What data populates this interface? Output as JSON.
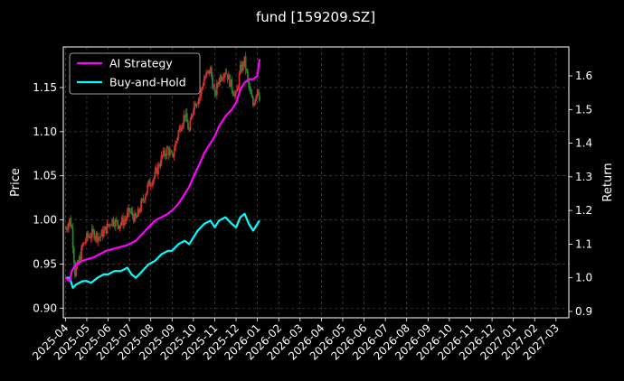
{
  "chart_data": {
    "type": "line",
    "title": "fund [159209.SZ]",
    "ylabel_left": "Price",
    "ylabel_right": "Return",
    "xlabel": "",
    "x_tick_labels": [
      "2025-04",
      "2025-05",
      "2025-06",
      "2025-07",
      "2025-08",
      "2025-09",
      "2025-10",
      "2025-11",
      "2025-12",
      "2026-01",
      "2026-02",
      "2026-03",
      "2026-04",
      "2026-05",
      "2026-06",
      "2026-07",
      "2026-08",
      "2026-09",
      "2026-10",
      "2026-11",
      "2026-12",
      "2027-01",
      "2027-02",
      "2027-03"
    ],
    "x_range_months": [
      -0.1,
      23.6
    ],
    "y_left": {
      "ticks": [
        0.9,
        0.95,
        1.0,
        1.05,
        1.1,
        1.15
      ],
      "tick_labels": [
        "0.90",
        "0.95",
        "1.00",
        "1.05",
        "1.10",
        "1.15"
      ],
      "range": [
        0.889,
        1.196
      ]
    },
    "y_right": {
      "ticks": [
        0.9,
        1.0,
        1.1,
        1.2,
        1.3,
        1.4,
        1.5,
        1.6
      ],
      "tick_labels": [
        "0.9",
        "1.0",
        "1.1",
        "1.2",
        "1.3",
        "1.4",
        "1.5",
        "1.6"
      ],
      "range": [
        0.881,
        1.686
      ]
    },
    "grid": true,
    "legend_position": "top-left",
    "background": "#000000",
    "text_color": "#ffffff",
    "series": [
      {
        "name": "AI Strategy",
        "axis": "right",
        "color": "#ff00ff",
        "points": [
          [
            0.0,
            1.0
          ],
          [
            0.2,
            0.99
          ],
          [
            0.3,
            1.02
          ],
          [
            0.5,
            1.04
          ],
          [
            0.8,
            1.05
          ],
          [
            1.0,
            1.055
          ],
          [
            1.3,
            1.06
          ],
          [
            1.6,
            1.07
          ],
          [
            1.9,
            1.08
          ],
          [
            2.2,
            1.085
          ],
          [
            2.5,
            1.09
          ],
          [
            2.8,
            1.095
          ],
          [
            3.0,
            1.1
          ],
          [
            3.3,
            1.11
          ],
          [
            3.6,
            1.13
          ],
          [
            3.9,
            1.15
          ],
          [
            4.2,
            1.17
          ],
          [
            4.5,
            1.18
          ],
          [
            4.8,
            1.19
          ],
          [
            5.0,
            1.2
          ],
          [
            5.3,
            1.22
          ],
          [
            5.6,
            1.25
          ],
          [
            5.8,
            1.27
          ],
          [
            6.0,
            1.3
          ],
          [
            6.3,
            1.34
          ],
          [
            6.5,
            1.37
          ],
          [
            6.8,
            1.4
          ],
          [
            7.0,
            1.42
          ],
          [
            7.2,
            1.45
          ],
          [
            7.5,
            1.48
          ],
          [
            7.8,
            1.5
          ],
          [
            8.0,
            1.52
          ],
          [
            8.2,
            1.56
          ],
          [
            8.4,
            1.58
          ],
          [
            8.6,
            1.59
          ],
          [
            8.8,
            1.59
          ],
          [
            9.0,
            1.6
          ],
          [
            9.1,
            1.65
          ]
        ]
      },
      {
        "name": "Buy-and-Hold",
        "axis": "right",
        "color": "#00ffff",
        "points": [
          [
            0.0,
            1.0
          ],
          [
            0.2,
            1.0
          ],
          [
            0.35,
            0.97
          ],
          [
            0.5,
            0.98
          ],
          [
            0.8,
            0.99
          ],
          [
            1.0,
            0.99
          ],
          [
            1.2,
            0.985
          ],
          [
            1.5,
            1.0
          ],
          [
            1.8,
            1.01
          ],
          [
            2.0,
            1.01
          ],
          [
            2.3,
            1.02
          ],
          [
            2.6,
            1.02
          ],
          [
            2.9,
            1.03
          ],
          [
            3.1,
            1.01
          ],
          [
            3.3,
            1.0
          ],
          [
            3.6,
            1.02
          ],
          [
            3.9,
            1.04
          ],
          [
            4.2,
            1.05
          ],
          [
            4.5,
            1.07
          ],
          [
            4.8,
            1.08
          ],
          [
            5.0,
            1.08
          ],
          [
            5.3,
            1.1
          ],
          [
            5.6,
            1.11
          ],
          [
            5.8,
            1.1
          ],
          [
            6.0,
            1.12
          ],
          [
            6.2,
            1.14
          ],
          [
            6.5,
            1.16
          ],
          [
            6.8,
            1.17
          ],
          [
            7.0,
            1.15
          ],
          [
            7.2,
            1.17
          ],
          [
            7.5,
            1.18
          ],
          [
            7.8,
            1.16
          ],
          [
            8.0,
            1.15
          ],
          [
            8.2,
            1.18
          ],
          [
            8.4,
            1.19
          ],
          [
            8.6,
            1.16
          ],
          [
            8.8,
            1.14
          ],
          [
            9.0,
            1.16
          ],
          [
            9.1,
            1.17
          ]
        ]
      },
      {
        "name": "Price",
        "axis": "left",
        "color_up": "#d32f2f",
        "color_down": "#2e7d32",
        "points": [
          [
            0.0,
            0.99
          ],
          [
            0.2,
            1.0
          ],
          [
            0.3,
            0.99
          ],
          [
            0.45,
            0.94
          ],
          [
            0.6,
            0.95
          ],
          [
            0.8,
            0.97
          ],
          [
            1.0,
            0.98
          ],
          [
            1.3,
            0.985
          ],
          [
            1.6,
            0.98
          ],
          [
            1.9,
            0.99
          ],
          [
            2.2,
            1.0
          ],
          [
            2.5,
            0.995
          ],
          [
            2.8,
            1.0
          ],
          [
            3.0,
            1.01
          ],
          [
            3.3,
            1.0
          ],
          [
            3.6,
            1.02
          ],
          [
            3.9,
            1.04
          ],
          [
            4.2,
            1.05
          ],
          [
            4.5,
            1.07
          ],
          [
            4.8,
            1.08
          ],
          [
            5.0,
            1.07
          ],
          [
            5.3,
            1.1
          ],
          [
            5.6,
            1.12
          ],
          [
            5.8,
            1.1
          ],
          [
            6.0,
            1.13
          ],
          [
            6.3,
            1.14
          ],
          [
            6.5,
            1.16
          ],
          [
            6.8,
            1.17
          ],
          [
            7.0,
            1.14
          ],
          [
            7.2,
            1.16
          ],
          [
            7.5,
            1.17
          ],
          [
            7.8,
            1.15
          ],
          [
            8.0,
            1.14
          ],
          [
            8.2,
            1.17
          ],
          [
            8.4,
            1.18
          ],
          [
            8.6,
            1.15
          ],
          [
            8.8,
            1.13
          ],
          [
            9.0,
            1.15
          ],
          [
            9.1,
            1.14
          ]
        ]
      }
    ]
  }
}
